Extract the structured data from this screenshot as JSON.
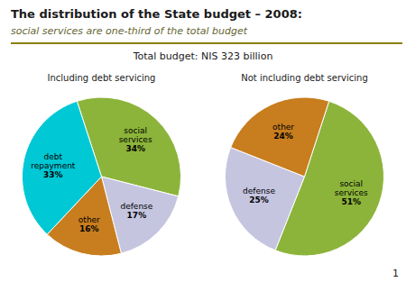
{
  "title": "The distribution of the State budget – 2008:",
  "subtitle": "social services are one-third of the total budget",
  "annotations": [
    "Total budget: NIS 323 billion",
    "1"
  ],
  "chart_data": [
    {
      "type": "pie",
      "title": "Including debt servicing",
      "categories": [
        "social services",
        "defense",
        "other",
        "debt repayment"
      ],
      "values": [
        34,
        17,
        16,
        33
      ],
      "value_labels": [
        "34%",
        "17%",
        "16%",
        "33%"
      ],
      "colors": [
        "#8cb43a",
        "#c5c5e0",
        "#c87d1e",
        "#00c8d4"
      ],
      "data_labels": true
    },
    {
      "type": "pie",
      "title": "Not including debt servicing",
      "categories": [
        "social services",
        "defense",
        "other"
      ],
      "values": [
        51,
        25,
        24
      ],
      "value_labels": [
        "51%",
        "25%",
        "24%"
      ],
      "colors": [
        "#8cb43a",
        "#c5c5e0",
        "#c87d1e"
      ],
      "data_labels": true
    }
  ]
}
